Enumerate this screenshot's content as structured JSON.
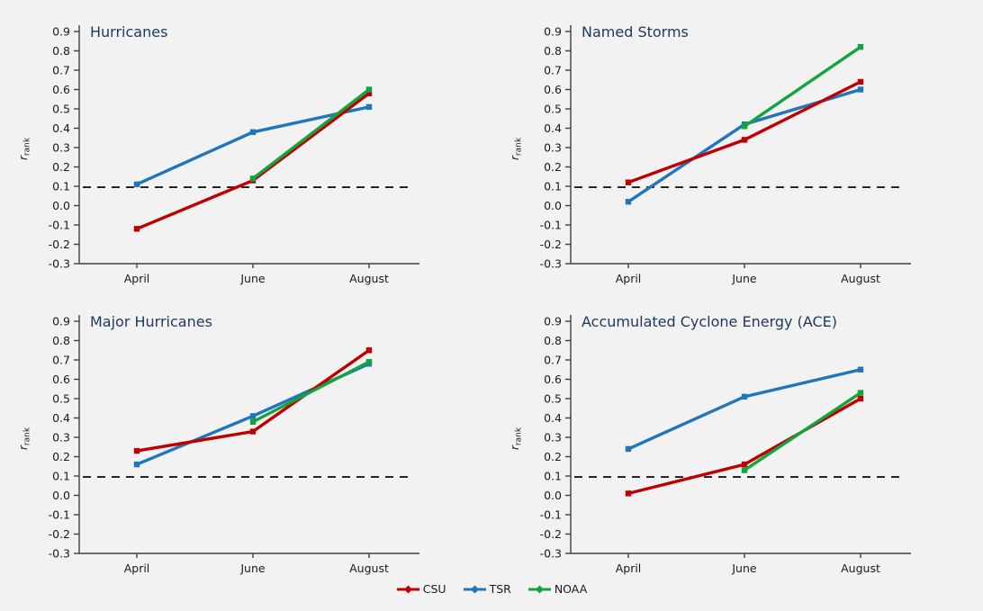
{
  "figure": {
    "background": "#f2f2f2",
    "title_color": "#1b3a5c",
    "axis_color": "#3f3f3f",
    "tick_label_color": "#1a1a1a",
    "dashed_line_color": "#1a1a1a",
    "y_axis": {
      "min": -0.3,
      "max": 0.9,
      "step": 0.1,
      "label_base": "r",
      "label_sub": "rank"
    },
    "x_categories": [
      "April",
      "June",
      "August"
    ],
    "colors": {
      "CSU": "#c00000",
      "TSR": "#1f76bc",
      "NOAA": "#12a53f"
    }
  },
  "legend": {
    "items": [
      {
        "label": "CSU",
        "series": "CSU"
      },
      {
        "label": "TSR",
        "series": "TSR"
      },
      {
        "label": "NOAA",
        "series": "NOAA"
      }
    ]
  },
  "chart_data": [
    {
      "type": "line",
      "title": "Hurricanes",
      "xlabel": "",
      "ylabel": "r_rank",
      "ylim": [
        -0.3,
        0.9
      ],
      "categories": [
        "April",
        "June",
        "August"
      ],
      "dashed_threshold": 0.095,
      "series": [
        {
          "name": "CSU",
          "values": [
            -0.12,
            0.13,
            0.58
          ]
        },
        {
          "name": "TSR",
          "values": [
            0.11,
            0.38,
            0.51
          ]
        },
        {
          "name": "NOAA",
          "values": [
            null,
            0.14,
            0.6
          ]
        }
      ]
    },
    {
      "type": "line",
      "title": "Named Storms",
      "xlabel": "",
      "ylabel": "r_rank",
      "ylim": [
        -0.3,
        0.9
      ],
      "categories": [
        "April",
        "June",
        "August"
      ],
      "dashed_threshold": 0.095,
      "series": [
        {
          "name": "CSU",
          "values": [
            0.12,
            0.34,
            0.64
          ]
        },
        {
          "name": "TSR",
          "values": [
            0.02,
            0.42,
            0.6
          ]
        },
        {
          "name": "NOAA",
          "values": [
            null,
            0.41,
            0.82
          ]
        }
      ]
    },
    {
      "type": "line",
      "title": "Major Hurricanes",
      "xlabel": "",
      "ylabel": "r_rank",
      "ylim": [
        -0.3,
        0.9
      ],
      "categories": [
        "April",
        "June",
        "August"
      ],
      "dashed_threshold": 0.095,
      "series": [
        {
          "name": "CSU",
          "values": [
            0.23,
            0.33,
            0.75
          ]
        },
        {
          "name": "TSR",
          "values": [
            0.16,
            0.41,
            0.68
          ]
        },
        {
          "name": "NOAA",
          "values": [
            null,
            0.38,
            0.69
          ]
        }
      ]
    },
    {
      "type": "line",
      "title": "Accumulated Cyclone Energy (ACE)",
      "xlabel": "",
      "ylabel": "r_rank",
      "ylim": [
        -0.3,
        0.9
      ],
      "categories": [
        "April",
        "June",
        "August"
      ],
      "dashed_threshold": 0.095,
      "series": [
        {
          "name": "CSU",
          "values": [
            0.01,
            0.16,
            0.5
          ]
        },
        {
          "name": "TSR",
          "values": [
            0.24,
            0.51,
            0.65
          ]
        },
        {
          "name": "NOAA",
          "values": [
            null,
            0.13,
            0.53
          ]
        }
      ]
    }
  ]
}
